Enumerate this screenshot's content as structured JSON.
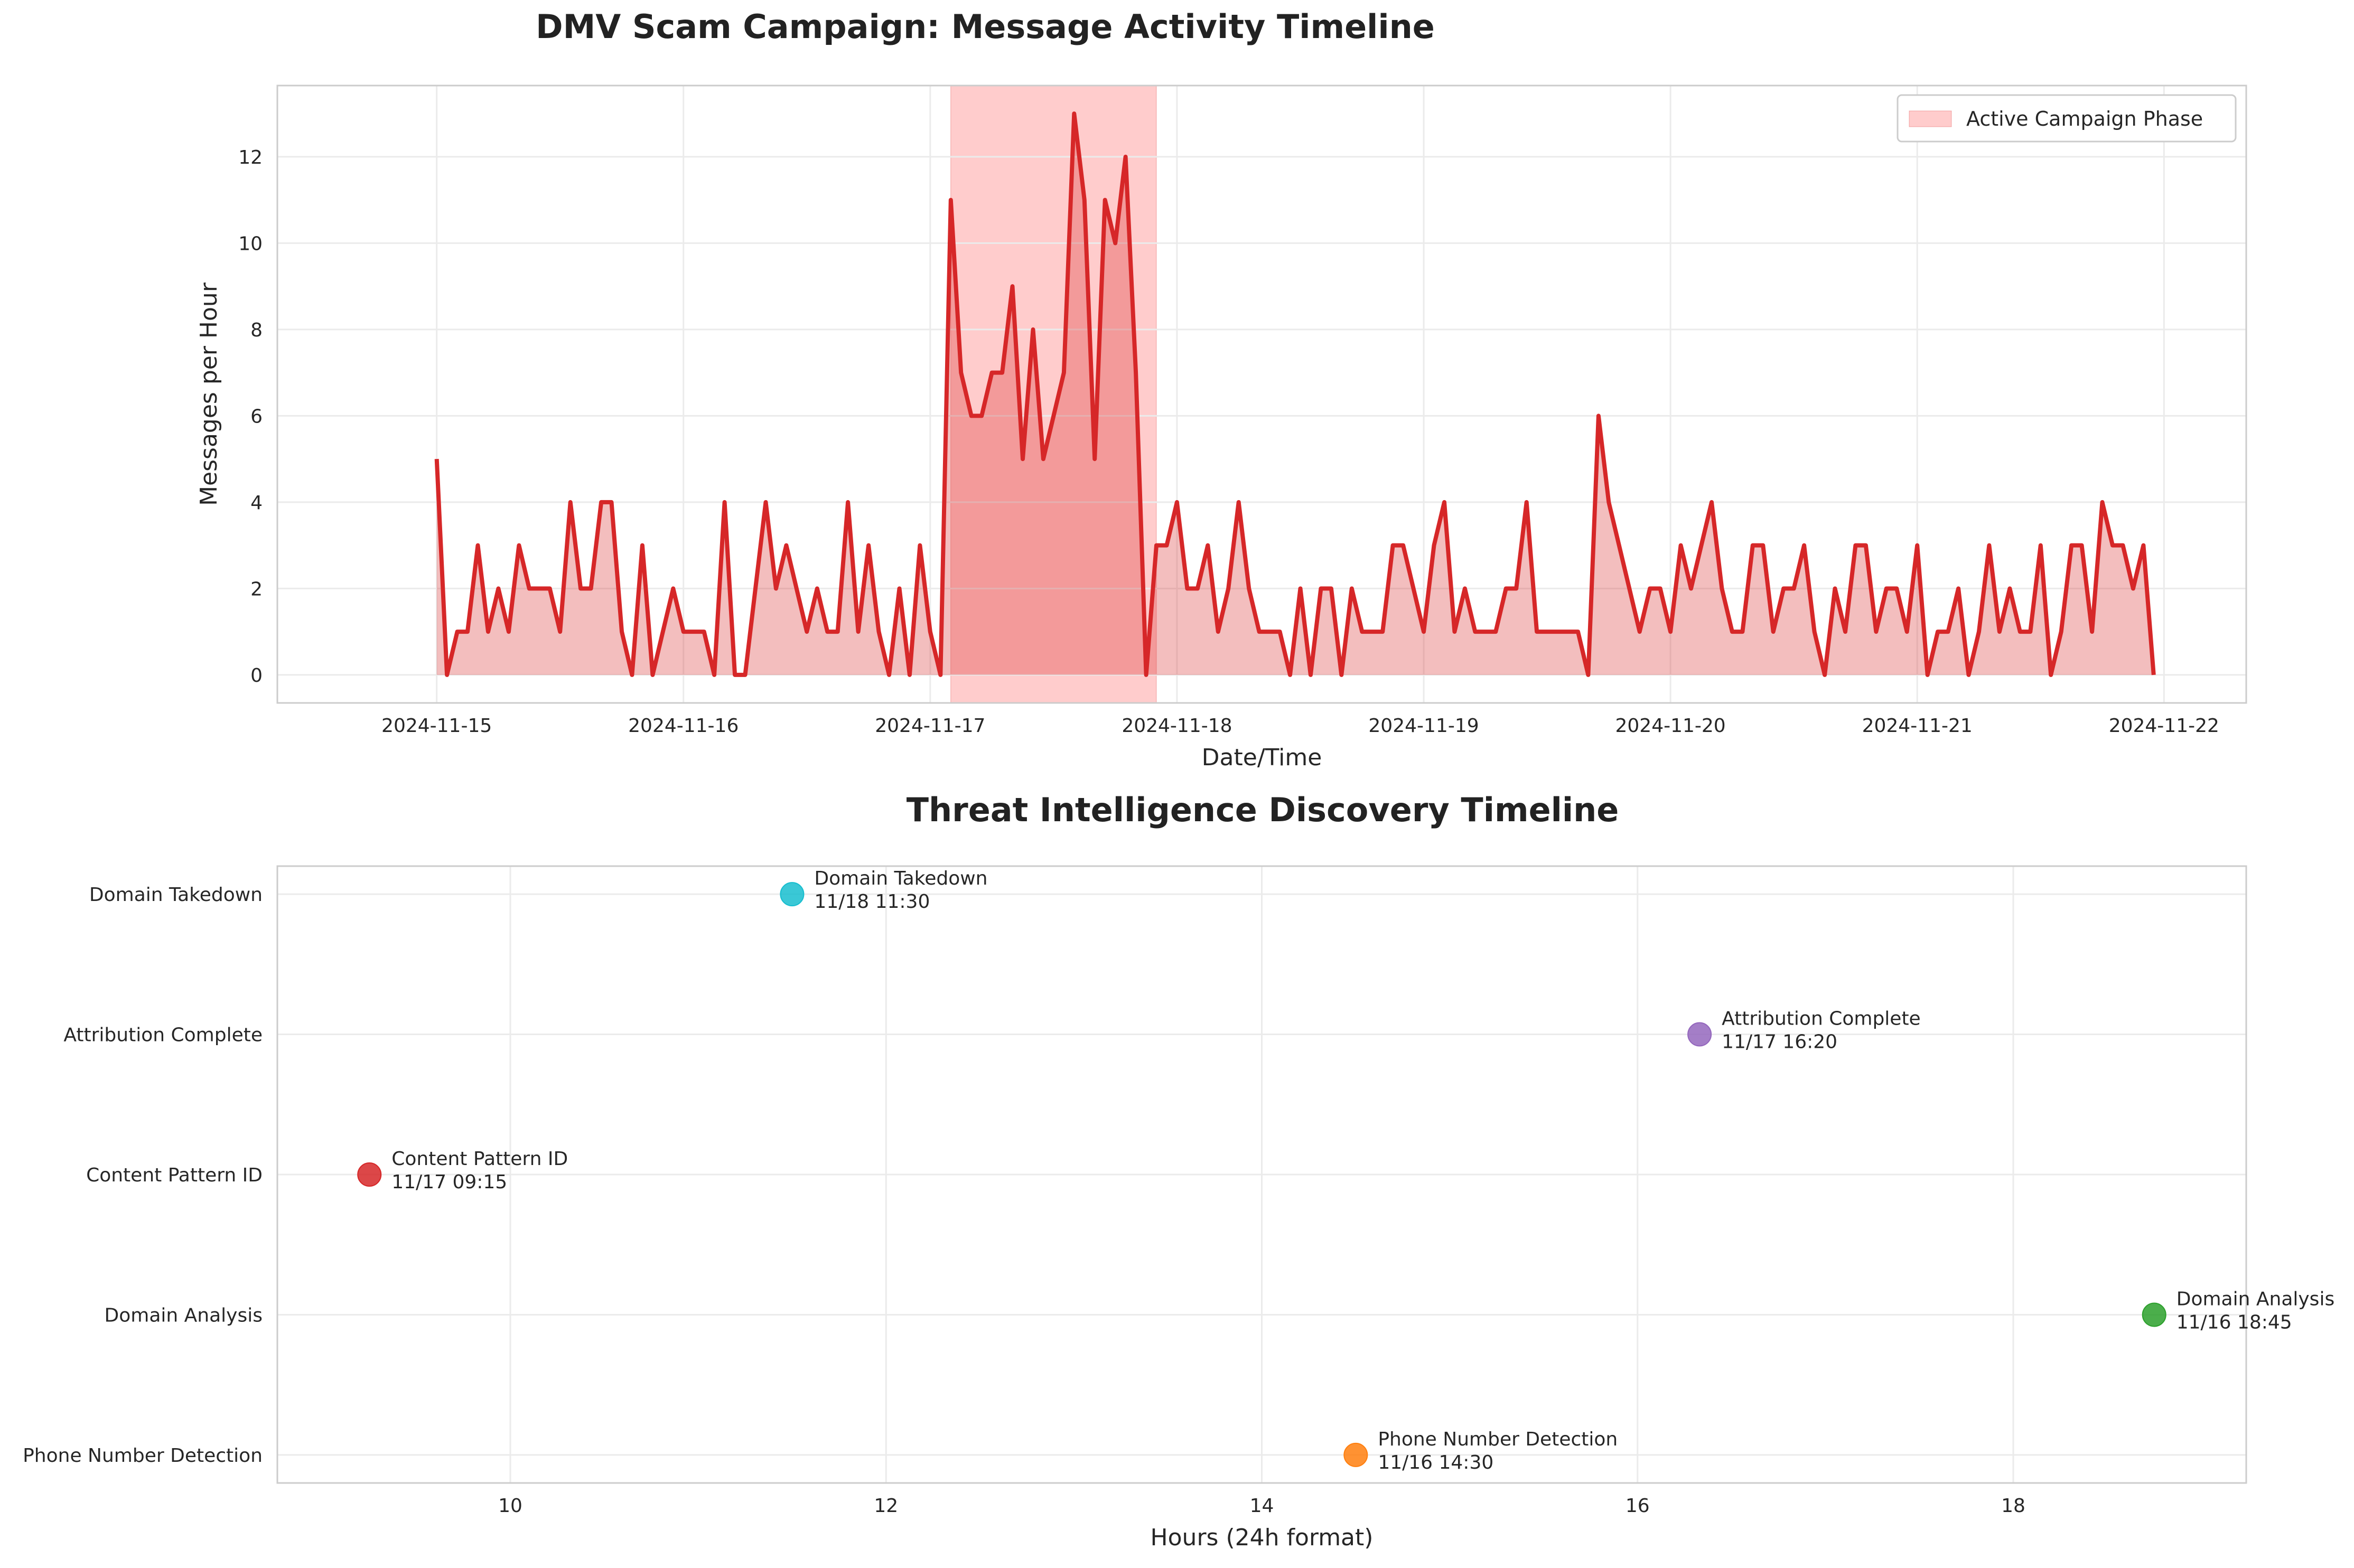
{
  "chart_data": [
    {
      "type": "area",
      "title": "DMV Scam Campaign: Message Activity Timeline",
      "xlabel": "Date/Time",
      "ylabel": "Messages per Hour",
      "xlim": [
        "2024-11-14 08:30",
        "2024-11-22 08:00"
      ],
      "ylim": [
        -0.65,
        13.65
      ],
      "x_ticks": [
        "2024-11-15",
        "2024-11-16",
        "2024-11-17",
        "2024-11-18",
        "2024-11-19",
        "2024-11-20",
        "2024-11-21",
        "2024-11-22"
      ],
      "y_ticks": [
        0,
        2,
        4,
        6,
        8,
        10,
        12
      ],
      "grid": true,
      "legend_position": "top-right",
      "line_color": "#d62728",
      "shaded_region": {
        "label": "Active Campaign Phase",
        "start": "2024-11-17 02:00",
        "end": "2024-11-17 22:00",
        "color": "#ff9999"
      },
      "series": [
        {
          "x_start": "2024-11-15 00:00",
          "x_step_hours": 1,
          "values": [
            5,
            0,
            1,
            1,
            3,
            1,
            2,
            1,
            3,
            2,
            2,
            2,
            1,
            4,
            2,
            2,
            4,
            4,
            1,
            0,
            3,
            0,
            1,
            2,
            1,
            1,
            1,
            0,
            4,
            0,
            0,
            2,
            4,
            2,
            3,
            2,
            1,
            2,
            1,
            1,
            4,
            1,
            3,
            1,
            0,
            2,
            0,
            3,
            1,
            0,
            11,
            7,
            6,
            6,
            7,
            7,
            9,
            5,
            8,
            5,
            6,
            7,
            13,
            11,
            5,
            11,
            10,
            12,
            7,
            0,
            3,
            3,
            4,
            2,
            2,
            3,
            1,
            2,
            4,
            2,
            1,
            1,
            1,
            0,
            2,
            0,
            2,
            2,
            0,
            2,
            1,
            1,
            1,
            3,
            3,
            2,
            1,
            3,
            4,
            1,
            2,
            1,
            1,
            1,
            2,
            2,
            4,
            1,
            1,
            1,
            1,
            1,
            0,
            6,
            4,
            3,
            2,
            1,
            2,
            2,
            1,
            3,
            2,
            3,
            4,
            2,
            1,
            1,
            3,
            3,
            1,
            2,
            2,
            3,
            1,
            0,
            2,
            1,
            3,
            3,
            1,
            2,
            2,
            1,
            3,
            0,
            1,
            1,
            2,
            0,
            1,
            3,
            1,
            2,
            1,
            1,
            3,
            0,
            1,
            3,
            3,
            1,
            4,
            3,
            3,
            2,
            3,
            0
          ]
        }
      ]
    },
    {
      "type": "scatter",
      "title": "Threat Intelligence Discovery Timeline",
      "xlabel": "Hours (24h format)",
      "ylabel": "",
      "xlim": [
        8.76,
        19.24
      ],
      "ylim": [
        -0.2,
        4.2
      ],
      "x_ticks": [
        10,
        12,
        14,
        16,
        18
      ],
      "categories": [
        "Phone Number Detection",
        "Domain Analysis",
        "Content Pattern ID",
        "Attribution Complete",
        "Domain Takedown"
      ],
      "grid": true,
      "points": [
        {
          "name": "Phone Number Detection",
          "time": "11/16 14:30",
          "x": 14.5,
          "y": 0,
          "color": "#ff7f0e"
        },
        {
          "name": "Domain Analysis",
          "time": "11/16 18:45",
          "x": 18.75,
          "y": 1,
          "color": "#2ca02c"
        },
        {
          "name": "Content Pattern ID",
          "time": "11/17 09:15",
          "x": 9.25,
          "y": 2,
          "color": "#d62728"
        },
        {
          "name": "Attribution Complete",
          "time": "11/17 16:20",
          "x": 16.33,
          "y": 3,
          "color": "#9467bd"
        },
        {
          "name": "Domain Takedown",
          "time": "11/18 11:30",
          "x": 11.5,
          "y": 4,
          "color": "#17becf"
        }
      ]
    }
  ]
}
